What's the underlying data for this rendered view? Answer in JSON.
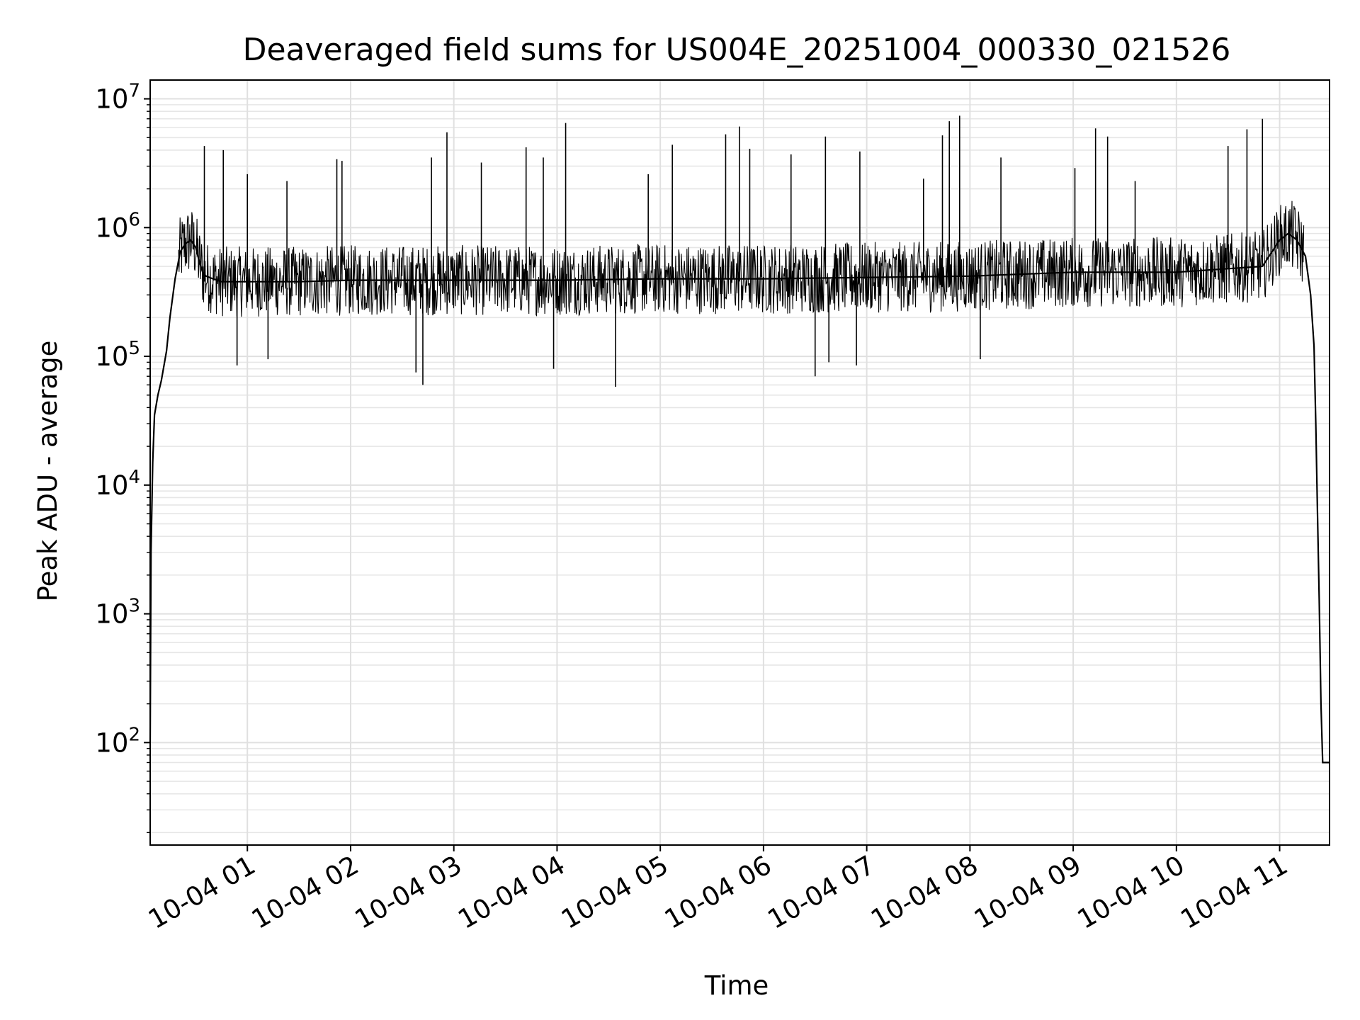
{
  "chart_data": {
    "type": "line",
    "title": "Deaveraged field sums for US004E_20251004_000330_021526",
    "xlabel": "Time",
    "ylabel": "Peak ADU - average",
    "yscale": "log",
    "ylim": [
      16,
      14000000
    ],
    "xlim": [
      "2025-10-04T00:03:30",
      "2025-10-04T11:29:00"
    ],
    "grid": true,
    "x_ticks": [
      "10-04 01",
      "10-04 02",
      "10-04 03",
      "10-04 04",
      "10-04 05",
      "10-04 06",
      "10-04 07",
      "10-04 08",
      "10-04 09",
      "10-04 10",
      "10-04 11"
    ],
    "y_ticks": [
      {
        "value": 100,
        "base": "10",
        "exp": "2"
      },
      {
        "value": 1000,
        "base": "10",
        "exp": "3"
      },
      {
        "value": 10000,
        "base": "10",
        "exp": "4"
      },
      {
        "value": 100000,
        "base": "10",
        "exp": "5"
      },
      {
        "value": 1000000,
        "base": "10",
        "exp": "6"
      },
      {
        "value": 10000000,
        "base": "10",
        "exp": "7"
      }
    ],
    "series": [
      {
        "color": "#000000",
        "x": [
          "2025-10-04T00:03:30",
          "2025-10-04T00:04:00",
          "2025-10-04T00:05:00",
          "2025-10-04T00:06:00",
          "2025-10-04T00:08:00",
          "2025-10-04T00:10:00",
          "2025-10-04T00:13:00",
          "2025-10-04T00:15:00",
          "2025-10-04T00:18:00",
          "2025-10-04T00:21:00",
          "2025-10-04T00:24:00",
          "2025-10-04T00:27:00",
          "2025-10-04T00:30:00",
          "2025-10-04T00:32:00",
          "2025-10-04T00:34:00",
          "2025-10-04T00:36:00",
          "2025-10-04T00:40:00",
          "2025-10-04T00:45:00",
          "2025-10-04T00:50:00",
          "2025-10-04T01:00:00",
          "2025-10-04T01:30:00",
          "2025-10-04T02:00:00",
          "2025-10-04T03:00:00",
          "2025-10-04T04:00:00",
          "2025-10-04T05:00:00",
          "2025-10-04T06:00:00",
          "2025-10-04T07:00:00",
          "2025-10-04T08:00:00",
          "2025-10-04T09:00:00",
          "2025-10-04T10:00:00",
          "2025-10-04T10:30:00",
          "2025-10-04T10:50:00",
          "2025-10-04T11:00:00",
          "2025-10-04T11:05:00",
          "2025-10-04T11:10:00",
          "2025-10-04T11:15:00",
          "2025-10-04T11:18:00",
          "2025-10-04T11:20:00",
          "2025-10-04T11:21:00",
          "2025-10-04T11:22:00",
          "2025-10-04T11:23:00",
          "2025-10-04T11:24:00",
          "2025-10-04T11:25:00",
          "2025-10-04T11:29:00"
        ],
        "y": [
          100,
          3000,
          15000,
          35000,
          50000,
          65000,
          110000,
          200000,
          400000,
          650000,
          750000,
          800000,
          700000,
          550000,
          450000,
          420000,
          400000,
          380000,
          380000,
          380000,
          380000,
          390000,
          390000,
          390000,
          400000,
          400000,
          410000,
          420000,
          450000,
          450000,
          480000,
          500000,
          800000,
          900000,
          800000,
          600000,
          300000,
          120000,
          30000,
          6000,
          1300,
          200,
          70,
          70
        ]
      }
    ],
    "spikes": [
      {
        "x": "2025-10-04T00:35:00",
        "y": 4300000
      },
      {
        "x": "2025-10-04T00:46:00",
        "y": 4000000
      },
      {
        "x": "2025-10-04T01:00:00",
        "y": 2600000
      },
      {
        "x": "2025-10-04T01:23:00",
        "y": 2300000
      },
      {
        "x": "2025-10-04T01:52:00",
        "y": 3400000
      },
      {
        "x": "2025-10-04T01:55:00",
        "y": 3300000
      },
      {
        "x": "2025-10-04T02:47:00",
        "y": 3500000
      },
      {
        "x": "2025-10-04T02:56:00",
        "y": 5500000
      },
      {
        "x": "2025-10-04T03:16:00",
        "y": 3200000
      },
      {
        "x": "2025-10-04T03:42:00",
        "y": 4200000
      },
      {
        "x": "2025-10-04T03:52:00",
        "y": 3500000
      },
      {
        "x": "2025-10-04T04:05:00",
        "y": 6500000
      },
      {
        "x": "2025-10-04T04:53:00",
        "y": 2600000
      },
      {
        "x": "2025-10-04T05:07:00",
        "y": 4400000
      },
      {
        "x": "2025-10-04T05:38:00",
        "y": 5300000
      },
      {
        "x": "2025-10-04T05:46:00",
        "y": 6100000
      },
      {
        "x": "2025-10-04T05:52:00",
        "y": 4100000
      },
      {
        "x": "2025-10-04T06:16:00",
        "y": 3700000
      },
      {
        "x": "2025-10-04T06:36:00",
        "y": 5100000
      },
      {
        "x": "2025-10-04T06:56:00",
        "y": 3900000
      },
      {
        "x": "2025-10-04T07:33:00",
        "y": 2400000
      },
      {
        "x": "2025-10-04T07:44:00",
        "y": 5200000
      },
      {
        "x": "2025-10-04T07:48:00",
        "y": 6700000
      },
      {
        "x": "2025-10-04T07:54:00",
        "y": 7400000
      },
      {
        "x": "2025-10-04T08:18:00",
        "y": 3500000
      },
      {
        "x": "2025-10-04T09:01:00",
        "y": 2900000
      },
      {
        "x": "2025-10-04T09:13:00",
        "y": 5900000
      },
      {
        "x": "2025-10-04T09:20:00",
        "y": 5100000
      },
      {
        "x": "2025-10-04T09:36:00",
        "y": 2300000
      },
      {
        "x": "2025-10-04T10:30:00",
        "y": 4300000
      },
      {
        "x": "2025-10-04T10:41:00",
        "y": 5800000
      },
      {
        "x": "2025-10-04T10:50:00",
        "y": 7000000
      }
    ],
    "dips": [
      {
        "x": "2025-10-04T00:54:00",
        "y": 85000
      },
      {
        "x": "2025-10-04T01:12:00",
        "y": 95000
      },
      {
        "x": "2025-10-04T02:38:00",
        "y": 75000
      },
      {
        "x": "2025-10-04T02:42:00",
        "y": 60000
      },
      {
        "x": "2025-10-04T03:58:00",
        "y": 80000
      },
      {
        "x": "2025-10-04T04:34:00",
        "y": 58000
      },
      {
        "x": "2025-10-04T06:30:00",
        "y": 70000
      },
      {
        "x": "2025-10-04T06:38:00",
        "y": 90000
      },
      {
        "x": "2025-10-04T06:54:00",
        "y": 85000
      },
      {
        "x": "2025-10-04T08:06:00",
        "y": 95000
      }
    ]
  }
}
